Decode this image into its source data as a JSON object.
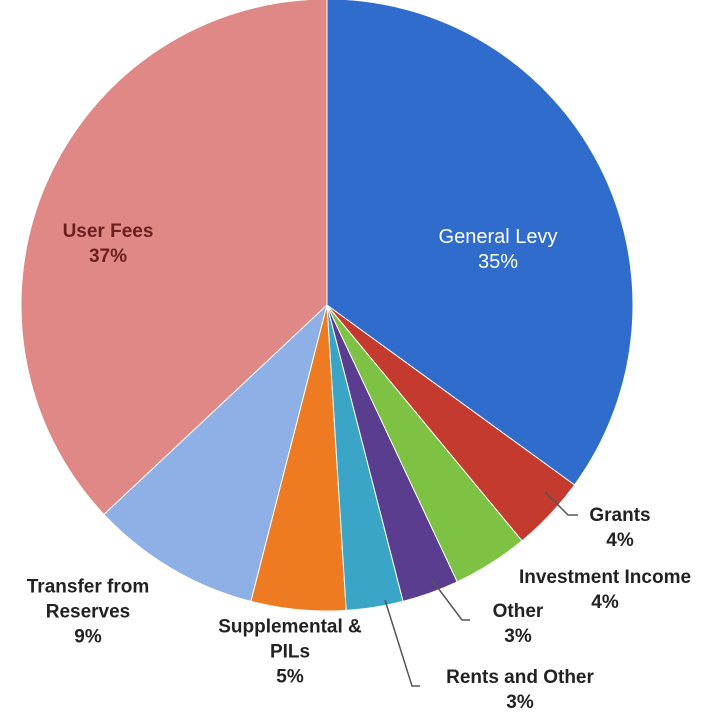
{
  "chart_data": {
    "type": "pie",
    "categories": [
      "General Levy",
      "Grants",
      "Investment Income",
      "Other",
      "Rents and Other",
      "Supplemental & PILs",
      "Transfer from Reserves",
      "User Fees"
    ],
    "values": [
      35,
      4,
      4,
      3,
      3,
      5,
      9,
      37
    ],
    "value_labels": [
      "35%",
      "4%",
      "4%",
      "3%",
      "3%",
      "5%",
      "9%",
      "37%"
    ],
    "colors": [
      "#2f6ccc",
      "#c43a2e",
      "#7dc243",
      "#5a3d8e",
      "#3ba5c8",
      "#ee7a22",
      "#8fb0e6",
      "#e08886"
    ]
  }
}
